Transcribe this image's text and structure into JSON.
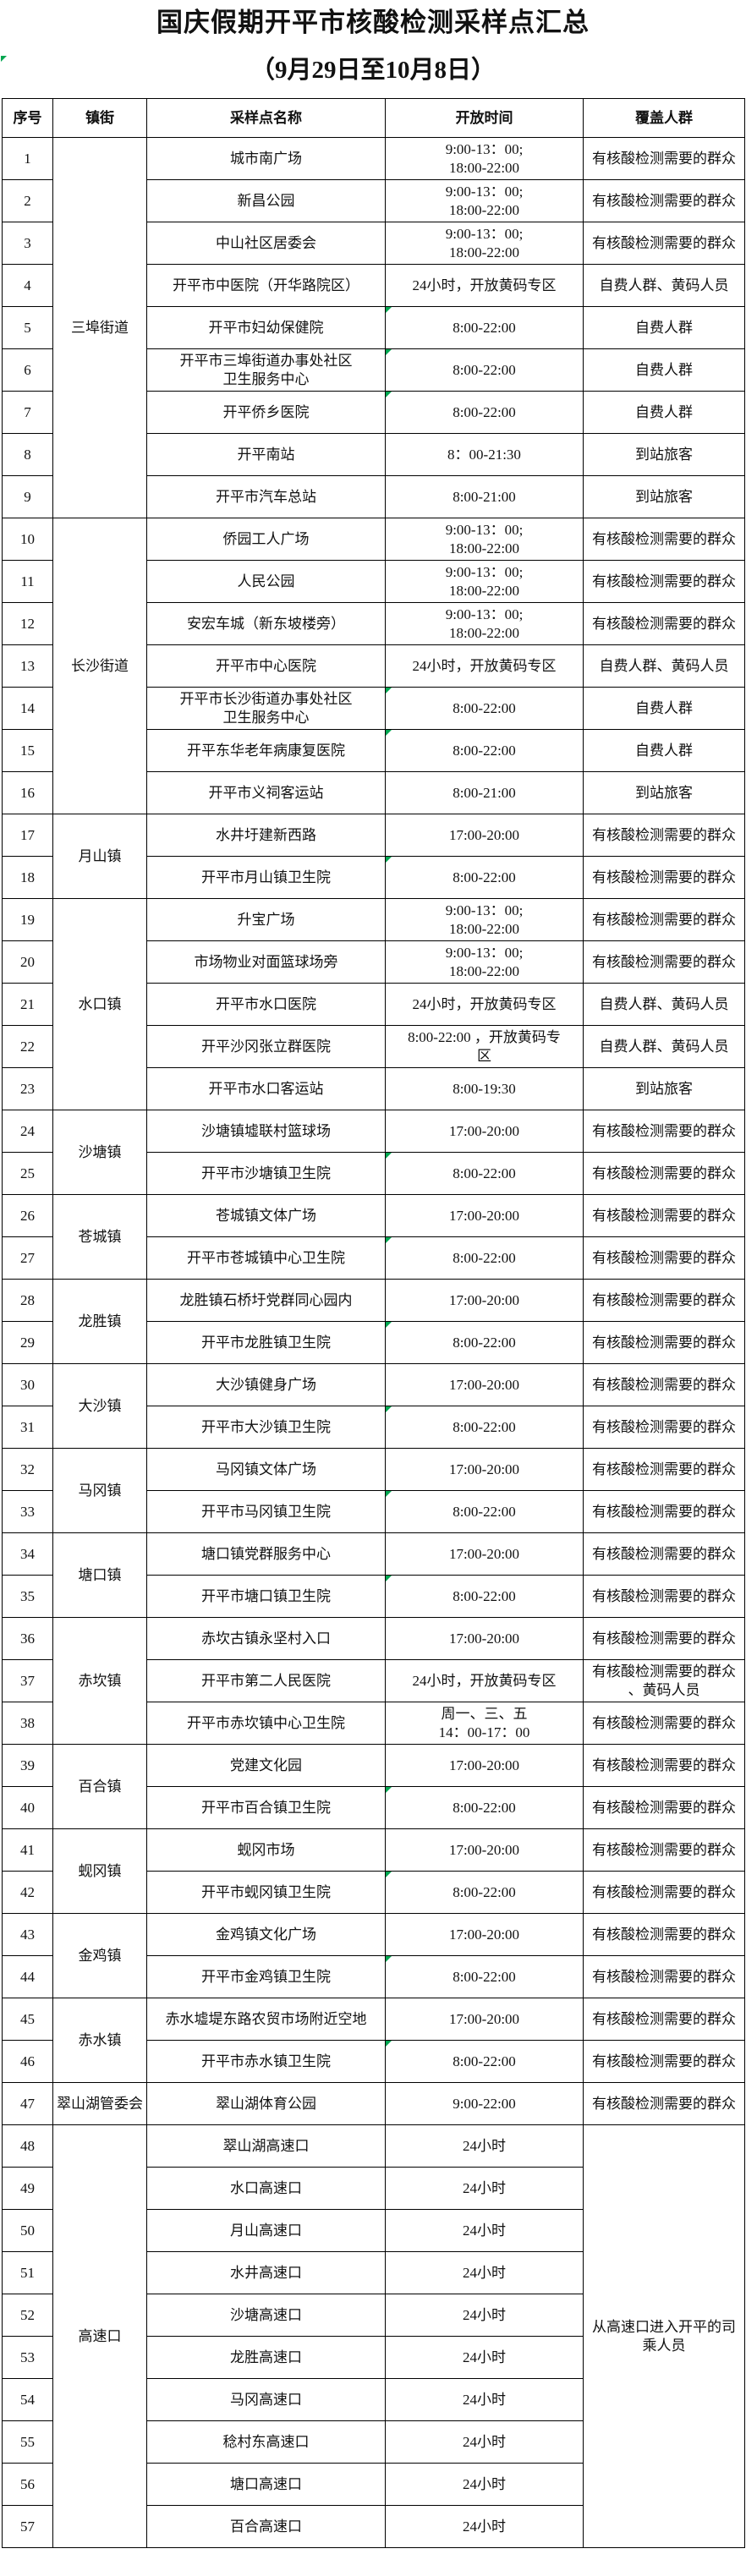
{
  "title": {
    "line1": "国庆假期开平市核酸检测采样点汇总",
    "line2": "（9月29日至10月8日）"
  },
  "columns": [
    "序号",
    "镇街",
    "采样点名称",
    "开放时间",
    "覆盖人群"
  ],
  "colors": {
    "marker_green": "#00a650",
    "border_black": "#000000",
    "text": "#111111",
    "background": "#ffffff"
  },
  "towns": [
    {
      "label": "三埠街道",
      "start": 1,
      "span": 9
    },
    {
      "label": "长沙街道",
      "start": 10,
      "span": 7
    },
    {
      "label": "月山镇",
      "start": 17,
      "span": 2
    },
    {
      "label": "水口镇",
      "start": 19,
      "span": 5
    },
    {
      "label": "沙塘镇",
      "start": 24,
      "span": 2
    },
    {
      "label": "苍城镇",
      "start": 26,
      "span": 2
    },
    {
      "label": "龙胜镇",
      "start": 28,
      "span": 2
    },
    {
      "label": "大沙镇",
      "start": 30,
      "span": 2
    },
    {
      "label": "马冈镇",
      "start": 32,
      "span": 2
    },
    {
      "label": "塘口镇",
      "start": 34,
      "span": 2
    },
    {
      "label": "赤坎镇",
      "start": 36,
      "span": 3
    },
    {
      "label": "百合镇",
      "start": 39,
      "span": 2
    },
    {
      "label": "蚬冈镇",
      "start": 41,
      "span": 2
    },
    {
      "label": "金鸡镇",
      "start": 43,
      "span": 2
    },
    {
      "label": "赤水镇",
      "start": 45,
      "span": 2
    },
    {
      "label": "翠山湖管委会",
      "start": 47,
      "span": 1
    },
    {
      "label": "高速口",
      "start": 48,
      "span": 10
    }
  ],
  "covered_merged": {
    "start": 48,
    "span": 10,
    "lines": [
      "从高速口进入开平的司",
      "乘人员"
    ]
  },
  "rows": [
    {
      "no": "1",
      "name": [
        "城市南广场"
      ],
      "time": [
        "9:00-13：00;",
        "18:00-22:00"
      ],
      "covered": [
        "有核酸检测需要的群众"
      ],
      "marker": false
    },
    {
      "no": "2",
      "name": [
        "新昌公园"
      ],
      "time": [
        "9:00-13：00;",
        "18:00-22:00"
      ],
      "covered": [
        "有核酸检测需要的群众"
      ],
      "marker": false
    },
    {
      "no": "3",
      "name": [
        "中山社区居委会"
      ],
      "time": [
        "9:00-13：00;",
        "18:00-22:00"
      ],
      "covered": [
        "有核酸检测需要的群众"
      ],
      "marker": false
    },
    {
      "no": "4",
      "name": [
        "开平市中医院（开华路院区）"
      ],
      "time": [
        "24小时，开放黄码专区"
      ],
      "covered": [
        "自费人群、黄码人员"
      ],
      "marker": false
    },
    {
      "no": "5",
      "name": [
        "开平市妇幼保健院"
      ],
      "time": [
        "8:00-22:00"
      ],
      "covered": [
        "自费人群"
      ],
      "marker": true
    },
    {
      "no": "6",
      "name": [
        "开平市三埠街道办事处社区",
        "卫生服务中心"
      ],
      "time": [
        "8:00-22:00"
      ],
      "covered": [
        "自费人群"
      ],
      "marker": true
    },
    {
      "no": "7",
      "name": [
        "开平侨乡医院"
      ],
      "time": [
        "8:00-22:00"
      ],
      "covered": [
        "自费人群"
      ],
      "marker": true
    },
    {
      "no": "8",
      "name": [
        "开平南站"
      ],
      "time": [
        "8：00-21:30"
      ],
      "covered": [
        "到站旅客"
      ],
      "marker": false
    },
    {
      "no": "9",
      "name": [
        "开平市汽车总站"
      ],
      "time": [
        "8:00-21:00"
      ],
      "covered": [
        "到站旅客"
      ],
      "marker": false
    },
    {
      "no": "10",
      "name": [
        "侨园工人广场"
      ],
      "time": [
        "9:00-13：00;",
        "18:00-22:00"
      ],
      "covered": [
        "有核酸检测需要的群众"
      ],
      "marker": false
    },
    {
      "no": "11",
      "name": [
        "人民公园"
      ],
      "time": [
        "9:00-13：00;",
        "18:00-22:00"
      ],
      "covered": [
        "有核酸检测需要的群众"
      ],
      "marker": false
    },
    {
      "no": "12",
      "name": [
        "安宏车城（新东坡楼旁）"
      ],
      "time": [
        "9:00-13：00;",
        "18:00-22:00"
      ],
      "covered": [
        "有核酸检测需要的群众"
      ],
      "marker": false
    },
    {
      "no": "13",
      "name": [
        "开平市中心医院"
      ],
      "time": [
        "24小时，开放黄码专区"
      ],
      "covered": [
        "自费人群、黄码人员"
      ],
      "marker": false
    },
    {
      "no": "14",
      "name": [
        "开平市长沙街道办事处社区",
        "卫生服务中心"
      ],
      "time": [
        "8:00-22:00"
      ],
      "covered": [
        "自费人群"
      ],
      "marker": true
    },
    {
      "no": "15",
      "name": [
        "开平东华老年病康复医院"
      ],
      "time": [
        "8:00-22:00"
      ],
      "covered": [
        "自费人群"
      ],
      "marker": true
    },
    {
      "no": "16",
      "name": [
        "开平市义祠客运站"
      ],
      "time": [
        "8:00-21:00"
      ],
      "covered": [
        "到站旅客"
      ],
      "marker": false
    },
    {
      "no": "17",
      "name": [
        "水井圩建新西路"
      ],
      "time": [
        "17:00-20:00"
      ],
      "covered": [
        "有核酸检测需要的群众"
      ],
      "marker": false
    },
    {
      "no": "18",
      "name": [
        "开平市月山镇卫生院"
      ],
      "time": [
        "8:00-22:00"
      ],
      "covered": [
        "有核酸检测需要的群众"
      ],
      "marker": true
    },
    {
      "no": "19",
      "name": [
        "升宝广场"
      ],
      "time": [
        "9:00-13：00;",
        "18:00-22:00"
      ],
      "covered": [
        "有核酸检测需要的群众"
      ],
      "marker": false
    },
    {
      "no": "20",
      "name": [
        "市场物业对面篮球场旁"
      ],
      "time": [
        "9:00-13：00;",
        "18:00-22:00"
      ],
      "covered": [
        "有核酸检测需要的群众"
      ],
      "marker": false
    },
    {
      "no": "21",
      "name": [
        "开平市水口医院"
      ],
      "time": [
        "24小时，开放黄码专区"
      ],
      "covered": [
        "自费人群、黄码人员"
      ],
      "marker": false
    },
    {
      "no": "22",
      "name": [
        "开平沙冈张立群医院"
      ],
      "time": [
        "8:00-22:00 ，开放黄码专",
        "区"
      ],
      "covered": [
        "自费人群、黄码人员"
      ],
      "marker": false
    },
    {
      "no": "23",
      "name": [
        "开平市水口客运站"
      ],
      "time": [
        "8:00-19:30"
      ],
      "covered": [
        "到站旅客"
      ],
      "marker": false
    },
    {
      "no": "24",
      "name": [
        "沙塘镇墟联村篮球场"
      ],
      "time": [
        "17:00-20:00"
      ],
      "covered": [
        "有核酸检测需要的群众"
      ],
      "marker": false
    },
    {
      "no": "25",
      "name": [
        "开平市沙塘镇卫生院"
      ],
      "time": [
        "8:00-22:00"
      ],
      "covered": [
        "有核酸检测需要的群众"
      ],
      "marker": true
    },
    {
      "no": "26",
      "name": [
        "苍城镇文体广场"
      ],
      "time": [
        "17:00-20:00"
      ],
      "covered": [
        "有核酸检测需要的群众"
      ],
      "marker": false
    },
    {
      "no": "27",
      "name": [
        "开平市苍城镇中心卫生院"
      ],
      "time": [
        "8:00-22:00"
      ],
      "covered": [
        "有核酸检测需要的群众"
      ],
      "marker": true
    },
    {
      "no": "28",
      "name": [
        "龙胜镇石桥圩党群同心园内"
      ],
      "time": [
        "17:00-20:00"
      ],
      "covered": [
        "有核酸检测需要的群众"
      ],
      "marker": false
    },
    {
      "no": "29",
      "name": [
        "开平市龙胜镇卫生院"
      ],
      "time": [
        "8:00-22:00"
      ],
      "covered": [
        "有核酸检测需要的群众"
      ],
      "marker": true
    },
    {
      "no": "30",
      "name": [
        "大沙镇健身广场"
      ],
      "time": [
        "17:00-20:00"
      ],
      "covered": [
        "有核酸检测需要的群众"
      ],
      "marker": false
    },
    {
      "no": "31",
      "name": [
        "开平市大沙镇卫生院"
      ],
      "time": [
        "8:00-22:00"
      ],
      "covered": [
        "有核酸检测需要的群众"
      ],
      "marker": true
    },
    {
      "no": "32",
      "name": [
        "马冈镇文体广场"
      ],
      "time": [
        "17:00-20:00"
      ],
      "covered": [
        "有核酸检测需要的群众"
      ],
      "marker": false
    },
    {
      "no": "33",
      "name": [
        "开平市马冈镇卫生院"
      ],
      "time": [
        "8:00-22:00"
      ],
      "covered": [
        "有核酸检测需要的群众"
      ],
      "marker": true
    },
    {
      "no": "34",
      "name": [
        "塘口镇党群服务中心"
      ],
      "time": [
        "17:00-20:00"
      ],
      "covered": [
        "有核酸检测需要的群众"
      ],
      "marker": false
    },
    {
      "no": "35",
      "name": [
        "开平市塘口镇卫生院"
      ],
      "time": [
        "8:00-22:00"
      ],
      "covered": [
        "有核酸检测需要的群众"
      ],
      "marker": true
    },
    {
      "no": "36",
      "name": [
        "赤坎古镇永坚村入口"
      ],
      "time": [
        "17:00-20:00"
      ],
      "covered": [
        "有核酸检测需要的群众"
      ],
      "marker": false
    },
    {
      "no": "37",
      "name": [
        "开平市第二人民医院"
      ],
      "time": [
        "24小时，开放黄码专区"
      ],
      "covered": [
        "有核酸检测需要的群众",
        "、黄码人员"
      ],
      "marker": false
    },
    {
      "no": "38",
      "name": [
        "开平市赤坎镇中心卫生院"
      ],
      "time": [
        "周一、三、五",
        "14：00-17：00"
      ],
      "covered": [
        "有核酸检测需要的群众"
      ],
      "marker": false
    },
    {
      "no": "39",
      "name": [
        "党建文化园"
      ],
      "time": [
        "17:00-20:00"
      ],
      "covered": [
        "有核酸检测需要的群众"
      ],
      "marker": false
    },
    {
      "no": "40",
      "name": [
        "开平市百合镇卫生院"
      ],
      "time": [
        "8:00-22:00"
      ],
      "covered": [
        "有核酸检测需要的群众"
      ],
      "marker": true
    },
    {
      "no": "41",
      "name": [
        "蚬冈市场"
      ],
      "time": [
        "17:00-20:00"
      ],
      "covered": [
        "有核酸检测需要的群众"
      ],
      "marker": false
    },
    {
      "no": "42",
      "name": [
        "开平市蚬冈镇卫生院"
      ],
      "time": [
        "8:00-22:00"
      ],
      "covered": [
        "有核酸检测需要的群众"
      ],
      "marker": true
    },
    {
      "no": "43",
      "name": [
        "金鸡镇文化广场"
      ],
      "time": [
        "17:00-20:00"
      ],
      "covered": [
        "有核酸检测需要的群众"
      ],
      "marker": false
    },
    {
      "no": "44",
      "name": [
        "开平市金鸡镇卫生院"
      ],
      "time": [
        "8:00-22:00"
      ],
      "covered": [
        "有核酸检测需要的群众"
      ],
      "marker": true
    },
    {
      "no": "45",
      "name": [
        "赤水墟堤东路农贸市场附近空地"
      ],
      "time": [
        "17:00-20:00"
      ],
      "covered": [
        "有核酸检测需要的群众"
      ],
      "marker": false
    },
    {
      "no": "46",
      "name": [
        "开平市赤水镇卫生院"
      ],
      "time": [
        "8:00-22:00"
      ],
      "covered": [
        "有核酸检测需要的群众"
      ],
      "marker": true
    },
    {
      "no": "47",
      "name": [
        "翠山湖体育公园"
      ],
      "time": [
        "9:00-22:00"
      ],
      "covered": [
        "有核酸检测需要的群众"
      ],
      "marker": false
    },
    {
      "no": "48",
      "name": [
        "翠山湖高速口"
      ],
      "time": [
        "24小时"
      ],
      "covered": null,
      "marker": false
    },
    {
      "no": "49",
      "name": [
        "水口高速口"
      ],
      "time": [
        "24小时"
      ],
      "covered": null,
      "marker": false
    },
    {
      "no": "50",
      "name": [
        "月山高速口"
      ],
      "time": [
        "24小时"
      ],
      "covered": null,
      "marker": false
    },
    {
      "no": "51",
      "name": [
        "水井高速口"
      ],
      "time": [
        "24小时"
      ],
      "covered": null,
      "marker": false
    },
    {
      "no": "52",
      "name": [
        "沙塘高速口"
      ],
      "time": [
        "24小时"
      ],
      "covered": null,
      "marker": false
    },
    {
      "no": "53",
      "name": [
        "龙胜高速口"
      ],
      "time": [
        "24小时"
      ],
      "covered": null,
      "marker": false
    },
    {
      "no": "54",
      "name": [
        "马冈高速口"
      ],
      "time": [
        "24小时"
      ],
      "covered": null,
      "marker": false
    },
    {
      "no": "55",
      "name": [
        "稔村东高速口"
      ],
      "time": [
        "24小时"
      ],
      "covered": null,
      "marker": false
    },
    {
      "no": "56",
      "name": [
        "塘口高速口"
      ],
      "time": [
        "24小时"
      ],
      "covered": null,
      "marker": false
    },
    {
      "no": "57",
      "name": [
        "百合高速口"
      ],
      "time": [
        "24小时"
      ],
      "covered": null,
      "marker": false
    }
  ]
}
